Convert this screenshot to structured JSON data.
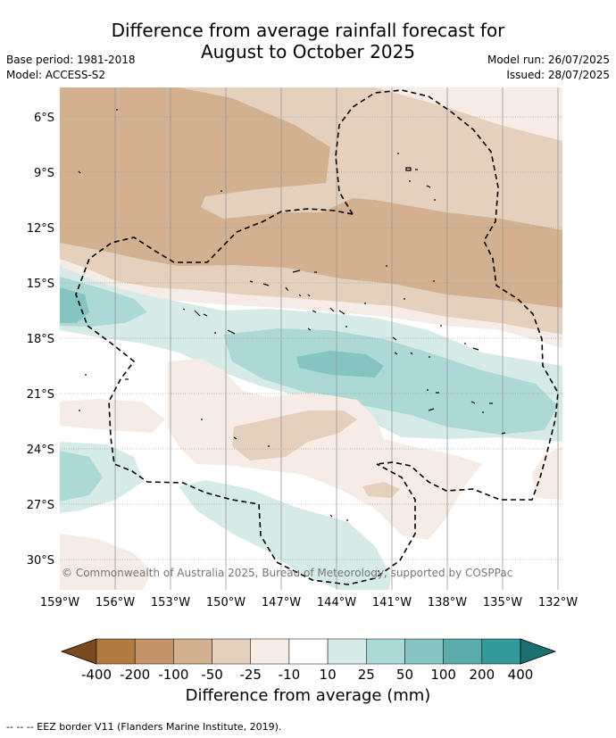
{
  "title_line1": "Difference from average rainfall forecast for",
  "title_line2": "August to October 2025",
  "meta": {
    "base_period": "Base period: 1981-2018",
    "model": "Model: ACCESS-S2",
    "model_run": "Model run: 26/07/2025",
    "issued": "Issued: 28/07/2025"
  },
  "map": {
    "lat_labels": [
      "6°S",
      "9°S",
      "12°S",
      "15°S",
      "18°S",
      "21°S",
      "24°S",
      "27°S",
      "30°S"
    ],
    "lon_labels": [
      "159°W",
      "156°W",
      "153°W",
      "150°W",
      "147°W",
      "144°W",
      "141°W",
      "138°W",
      "135°W",
      "132°W"
    ],
    "copyright": "© Commonwealth of Australia 2025, Bureau of Meteorology, supported by COSPPac"
  },
  "colorbar": {
    "title": "Difference from average (mm)",
    "tick_labels": [
      "-400",
      "-200",
      "-100",
      "-50",
      "-25",
      "-10",
      "10",
      "25",
      "50",
      "100",
      "200",
      "400"
    ],
    "colors": [
      "#7a4a1e",
      "#b07a40",
      "#c29468",
      "#d3b08f",
      "#e5d0bd",
      "#f4ece5",
      "#ffffff",
      "#d6ebe8",
      "#acd9d5",
      "#85c4c0",
      "#5aacaa",
      "#34999a",
      "#1c6f6f"
    ]
  },
  "footer": "--  --  -- EEZ border V11 (Flanders Marine Institute, 2019)."
}
